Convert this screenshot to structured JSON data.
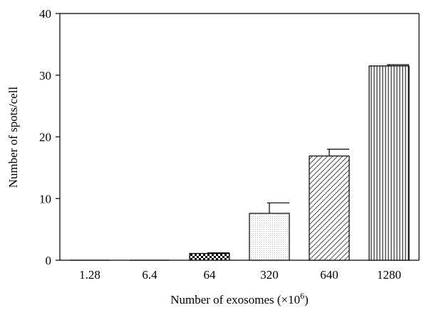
{
  "chart_data": {
    "type": "bar",
    "categories": [
      "1.28",
      "6.4",
      "64",
      "320",
      "640",
      "1280"
    ],
    "values": [
      0,
      0,
      1.1,
      7.6,
      16.9,
      31.5
    ],
    "errors": [
      0,
      0,
      0.1,
      1.7,
      1.1,
      0.2
    ],
    "patterns": [
      "none",
      "none",
      "checker",
      "stipple",
      "diagonal",
      "vertical"
    ],
    "xlabel": "Number of exosomes (×10",
    "xlabel_exponent": "6",
    "xlabel_suffix": ")",
    "ylabel": "Number of spots/cell",
    "ylim": [
      0,
      40
    ],
    "yticks": [
      "0",
      "10",
      "20",
      "30",
      "40"
    ],
    "grid": false,
    "legend": "none"
  }
}
